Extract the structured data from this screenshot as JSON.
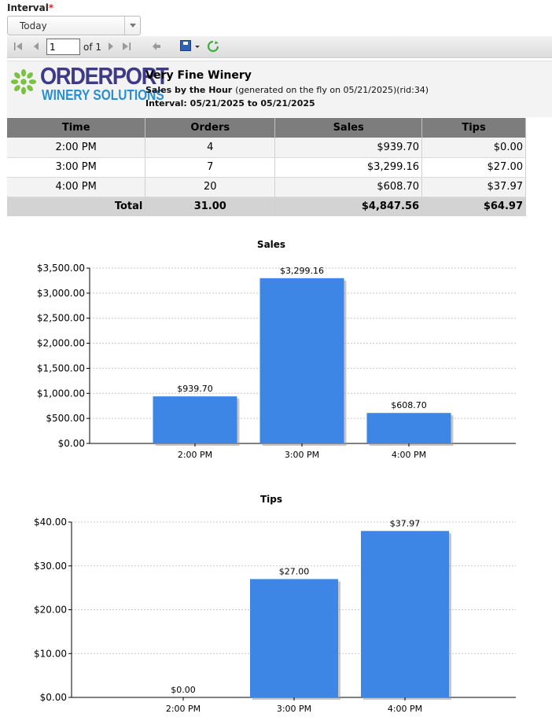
{
  "interval": {
    "label": "Interval",
    "required_mark": "*",
    "selected": "Today"
  },
  "toolbar": {
    "page_value": "1",
    "page_of": "of 1"
  },
  "report": {
    "logo_top": "ORDERPORT",
    "logo_bottom": "WINERY SOLUTIONS",
    "company": "Very Fine Winery",
    "title": "Sales by the Hour",
    "generated": "(generated on the fly on 05/21/2025)(rid:34)",
    "interval_text": "Interval: 05/21/2025 to 05/21/2025"
  },
  "table": {
    "headers": [
      "Time",
      "Orders",
      "Sales",
      "Tips"
    ],
    "rows": [
      [
        "2:00 PM",
        "4",
        "$939.70",
        "$0.00"
      ],
      [
        "3:00 PM",
        "7",
        "$3,299.16",
        "$27.00"
      ],
      [
        "4:00 PM",
        "20",
        "$608.70",
        "$37.97"
      ]
    ],
    "total": [
      "Total",
      "31.00",
      "$4,847.56",
      "$64.97"
    ]
  },
  "colors": {
    "bar": "#3d86e6",
    "header": "#7d7d7d",
    "total": "#d3d3d3",
    "logo_dark": "#3f3a86",
    "logo_light": "#2a8fd0",
    "logo_mark": "#7cc242"
  },
  "chart_data": [
    {
      "type": "bar",
      "title": "Sales",
      "categories": [
        "2:00 PM",
        "3:00 PM",
        "4:00 PM"
      ],
      "values": [
        939.7,
        3299.16,
        608.7
      ],
      "labels": [
        "$939.70",
        "$3,299.16",
        "$608.70"
      ],
      "ylim": [
        0,
        3500
      ],
      "yticks": [
        0,
        500,
        1000,
        1500,
        2000,
        2500,
        3000,
        3500
      ],
      "ytick_labels": [
        "$0.00",
        "$500.00",
        "$1,000.00",
        "$1,500.00",
        "$2,000.00",
        "$2,500.00",
        "$3,000.00",
        "$3,500.00"
      ],
      "grid": true,
      "legend": "none"
    },
    {
      "type": "bar",
      "title": "Tips",
      "categories": [
        "2:00 PM",
        "3:00 PM",
        "4:00 PM"
      ],
      "values": [
        0.0,
        27.0,
        37.97
      ],
      "labels": [
        "$0.00",
        "$27.00",
        "$37.97"
      ],
      "ylim": [
        0,
        40
      ],
      "yticks": [
        0,
        10,
        20,
        30,
        40
      ],
      "ytick_labels": [
        "$0.00",
        "$10.00",
        "$20.00",
        "$30.00",
        "$40.00"
      ],
      "grid": true,
      "legend": "none"
    }
  ]
}
